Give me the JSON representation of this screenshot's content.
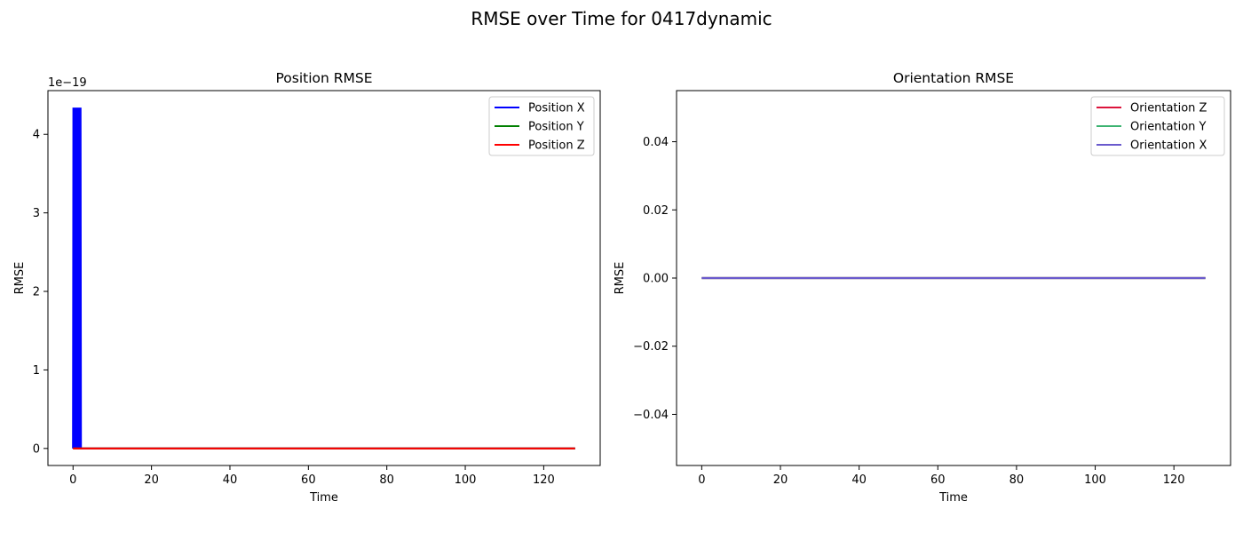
{
  "figure_title": "RMSE over Time for 0417dynamic",
  "colors": {
    "position_x": "#0000ff",
    "position_y": "#008000",
    "position_z": "#ff0000",
    "orientation_z": "#dc143c",
    "orientation_y": "#3cb371",
    "orientation_x": "#6a5acd"
  },
  "chart_data": [
    {
      "type": "line",
      "title": "Position RMSE",
      "xlabel": "Time",
      "ylabel": "RMSE",
      "y_offset_text": "1e−19",
      "xlim": [
        -6.4,
        134.4
      ],
      "ylim": [
        -0.217,
        4.557
      ],
      "y_scale_note": "values in units of 1e-19",
      "xticks": [
        0,
        20,
        40,
        60,
        80,
        100,
        120
      ],
      "xtick_labels": [
        "0",
        "20",
        "40",
        "60",
        "80",
        "100",
        "120"
      ],
      "yticks": [
        0,
        1,
        2,
        3,
        4
      ],
      "ytick_labels": [
        "0",
        "1",
        "2",
        "3",
        "4"
      ],
      "grid": false,
      "legend_position": "upper right",
      "series": [
        {
          "name": "Position X",
          "color_key": "position_x",
          "x": [
            0.0,
            0.1,
            0.2,
            0.3,
            0.4,
            0.5,
            0.6,
            0.7,
            0.8,
            0.9,
            1.0,
            1.1,
            1.2,
            1.3,
            1.4,
            1.5,
            1.6,
            1.7,
            1.8,
            1.9,
            2.0,
            2.05,
            128.0
          ],
          "y": [
            0.0,
            4.34,
            0.0,
            4.34,
            0.0,
            4.34,
            0.0,
            4.34,
            0.0,
            4.34,
            0.0,
            4.34,
            0.0,
            4.34,
            0.0,
            4.34,
            0.0,
            4.34,
            0.0,
            4.34,
            0.0,
            0.0,
            0.0
          ]
        },
        {
          "name": "Position Y",
          "color_key": "position_y",
          "x": [
            0,
            128
          ],
          "y": [
            0,
            0
          ]
        },
        {
          "name": "Position Z",
          "color_key": "position_z",
          "x": [
            0,
            128
          ],
          "y": [
            0,
            0
          ]
        }
      ]
    },
    {
      "type": "line",
      "title": "Orientation RMSE",
      "xlabel": "Time",
      "ylabel": "RMSE",
      "xlim": [
        -6.4,
        134.4
      ],
      "ylim": [
        -0.055,
        0.055
      ],
      "xticks": [
        0,
        20,
        40,
        60,
        80,
        100,
        120
      ],
      "xtick_labels": [
        "0",
        "20",
        "40",
        "60",
        "80",
        "100",
        "120"
      ],
      "yticks": [
        0.04,
        0.02,
        0.0,
        -0.02,
        -0.04
      ],
      "ytick_labels": [
        "0.04",
        "0.02",
        "0.00",
        "−0.02",
        "−0.04"
      ],
      "grid": false,
      "legend_position": "upper right",
      "series": [
        {
          "name": "Orientation Z",
          "color_key": "orientation_z",
          "x": [
            0,
            128
          ],
          "y": [
            0,
            0
          ]
        },
        {
          "name": "Orientation Y",
          "color_key": "orientation_y",
          "x": [
            0,
            128
          ],
          "y": [
            0,
            0
          ]
        },
        {
          "name": "Orientation X",
          "color_key": "orientation_x",
          "x": [
            0,
            128
          ],
          "y": [
            0,
            0
          ]
        }
      ]
    }
  ]
}
